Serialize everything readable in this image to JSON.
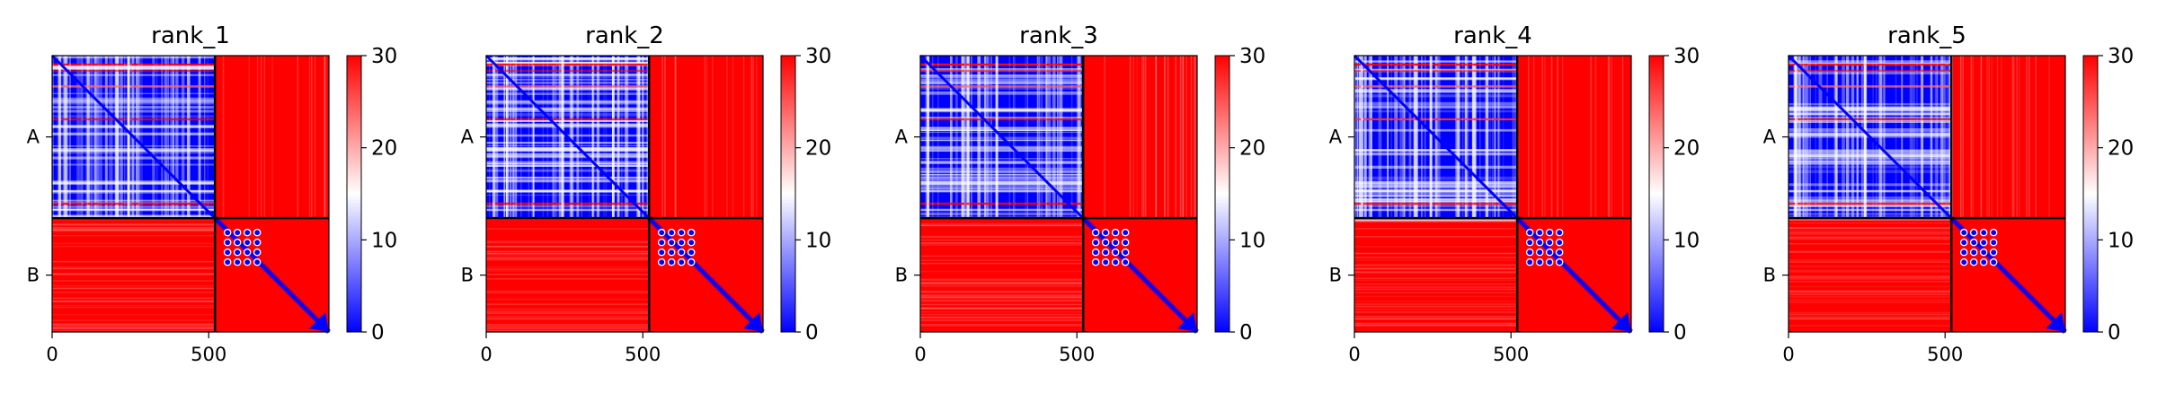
{
  "chart_data": [
    {
      "type": "heatmap",
      "title": "rank_1",
      "xlim": [
        0,
        884
      ],
      "x_ticks": [
        0,
        500
      ],
      "y_tick_labels": [
        "A",
        "B"
      ],
      "chain_boundary": 520,
      "colorbar": {
        "min": 0,
        "max": 30,
        "ticks": [
          0,
          10,
          20,
          30
        ],
        "colors": [
          "#0000ff",
          "#ffffff",
          "#ff0000"
        ]
      }
    },
    {
      "type": "heatmap",
      "title": "rank_2",
      "xlim": [
        0,
        884
      ],
      "x_ticks": [
        0,
        500
      ],
      "y_tick_labels": [
        "A",
        "B"
      ],
      "chain_boundary": 520,
      "colorbar": {
        "min": 0,
        "max": 30,
        "ticks": [
          0,
          10,
          20,
          30
        ],
        "colors": [
          "#0000ff",
          "#ffffff",
          "#ff0000"
        ]
      }
    },
    {
      "type": "heatmap",
      "title": "rank_3",
      "xlim": [
        0,
        884
      ],
      "x_ticks": [
        0,
        500
      ],
      "y_tick_labels": [
        "A",
        "B"
      ],
      "chain_boundary": 520,
      "colorbar": {
        "min": 0,
        "max": 30,
        "ticks": [
          0,
          10,
          20,
          30
        ],
        "colors": [
          "#0000ff",
          "#ffffff",
          "#ff0000"
        ]
      }
    },
    {
      "type": "heatmap",
      "title": "rank_4",
      "xlim": [
        0,
        884
      ],
      "x_ticks": [
        0,
        500
      ],
      "y_tick_labels": [
        "A",
        "B"
      ],
      "chain_boundary": 520,
      "colorbar": {
        "min": 0,
        "max": 30,
        "ticks": [
          0,
          10,
          20,
          30
        ],
        "colors": [
          "#0000ff",
          "#ffffff",
          "#ff0000"
        ]
      }
    },
    {
      "type": "heatmap",
      "title": "rank_5",
      "xlim": [
        0,
        884
      ],
      "x_ticks": [
        0,
        500
      ],
      "y_tick_labels": [
        "A",
        "B"
      ],
      "chain_boundary": 520,
      "colorbar": {
        "min": 0,
        "max": 30,
        "ticks": [
          0,
          10,
          20,
          30
        ],
        "colors": [
          "#0000ff",
          "#ffffff",
          "#ff0000"
        ]
      }
    }
  ]
}
